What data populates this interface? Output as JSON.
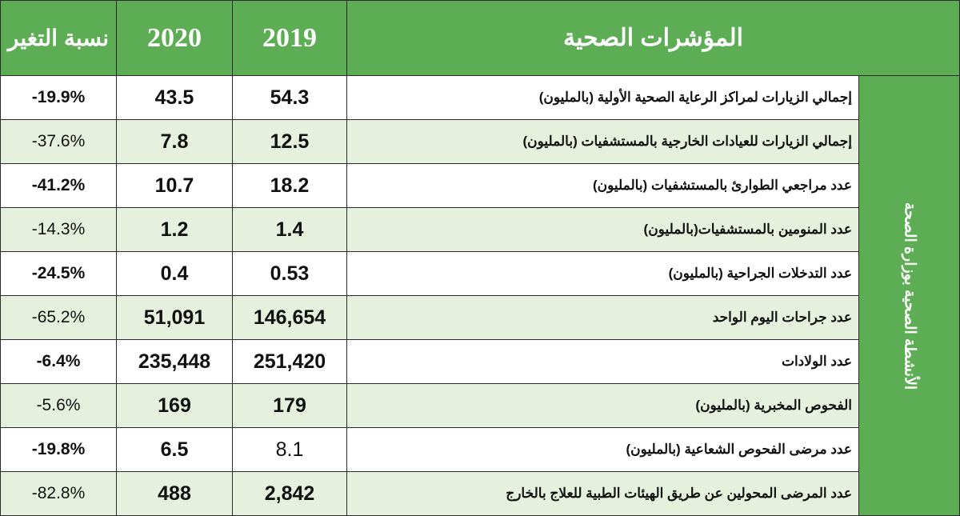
{
  "header": {
    "change": "نسبة التغير",
    "y2020": "2020",
    "y2019": "2019",
    "title": "المؤشرات الصحية"
  },
  "side_label": "الأنشطة الصحية بوزارة الصحة",
  "rows": [
    {
      "change": "-19.9%",
      "y2020": "43.5",
      "y2019": "54.3",
      "label": "إجمالي الزيارات لمراكز الرعاية الصحية الأولية (بالمليون)"
    },
    {
      "change": "-37.6%",
      "y2020": "7.8",
      "y2019": "12.5",
      "label": "إجمالي الزيارات للعيادات الخارجية بالمستشفيات (بالمليون)"
    },
    {
      "change": "-41.2%",
      "y2020": "10.7",
      "y2019": "18.2",
      "label": "عدد مراجعي الطوارئ بالمستشفيات (بالمليون)"
    },
    {
      "change": "-14.3%",
      "y2020": "1.2",
      "y2019": "1.4",
      "label": "عدد المنومين بالمستشفيات(بالمليون)"
    },
    {
      "change": "-24.5%",
      "y2020": "0.4",
      "y2019": "0.53",
      "label": "عدد التدخلات الجراحية (بالمليون)"
    },
    {
      "change": "-65.2%",
      "y2020": "51,091",
      "y2019": "146,654",
      "label": "عدد جراحات  اليوم الواحد"
    },
    {
      "change": "-6.4%",
      "y2020": "235,448",
      "y2019": "251,420",
      "label": "عدد الولادات"
    },
    {
      "change": "-5.6%",
      "y2020": "169",
      "y2019": "179",
      "label": "الفحوص المخبرية (بالمليون)"
    },
    {
      "change": "-19.8%",
      "y2020": "6.5",
      "y2019": "8.1",
      "label": "عدد مرضى الفحوص الشعاعية (بالمليون)"
    },
    {
      "change": "-82.8%",
      "y2020": "488",
      "y2019": "2,842",
      "label": "عدد المرضى المحولين عن طريق الهيئات الطبية للعلاج بالخارج"
    }
  ]
}
